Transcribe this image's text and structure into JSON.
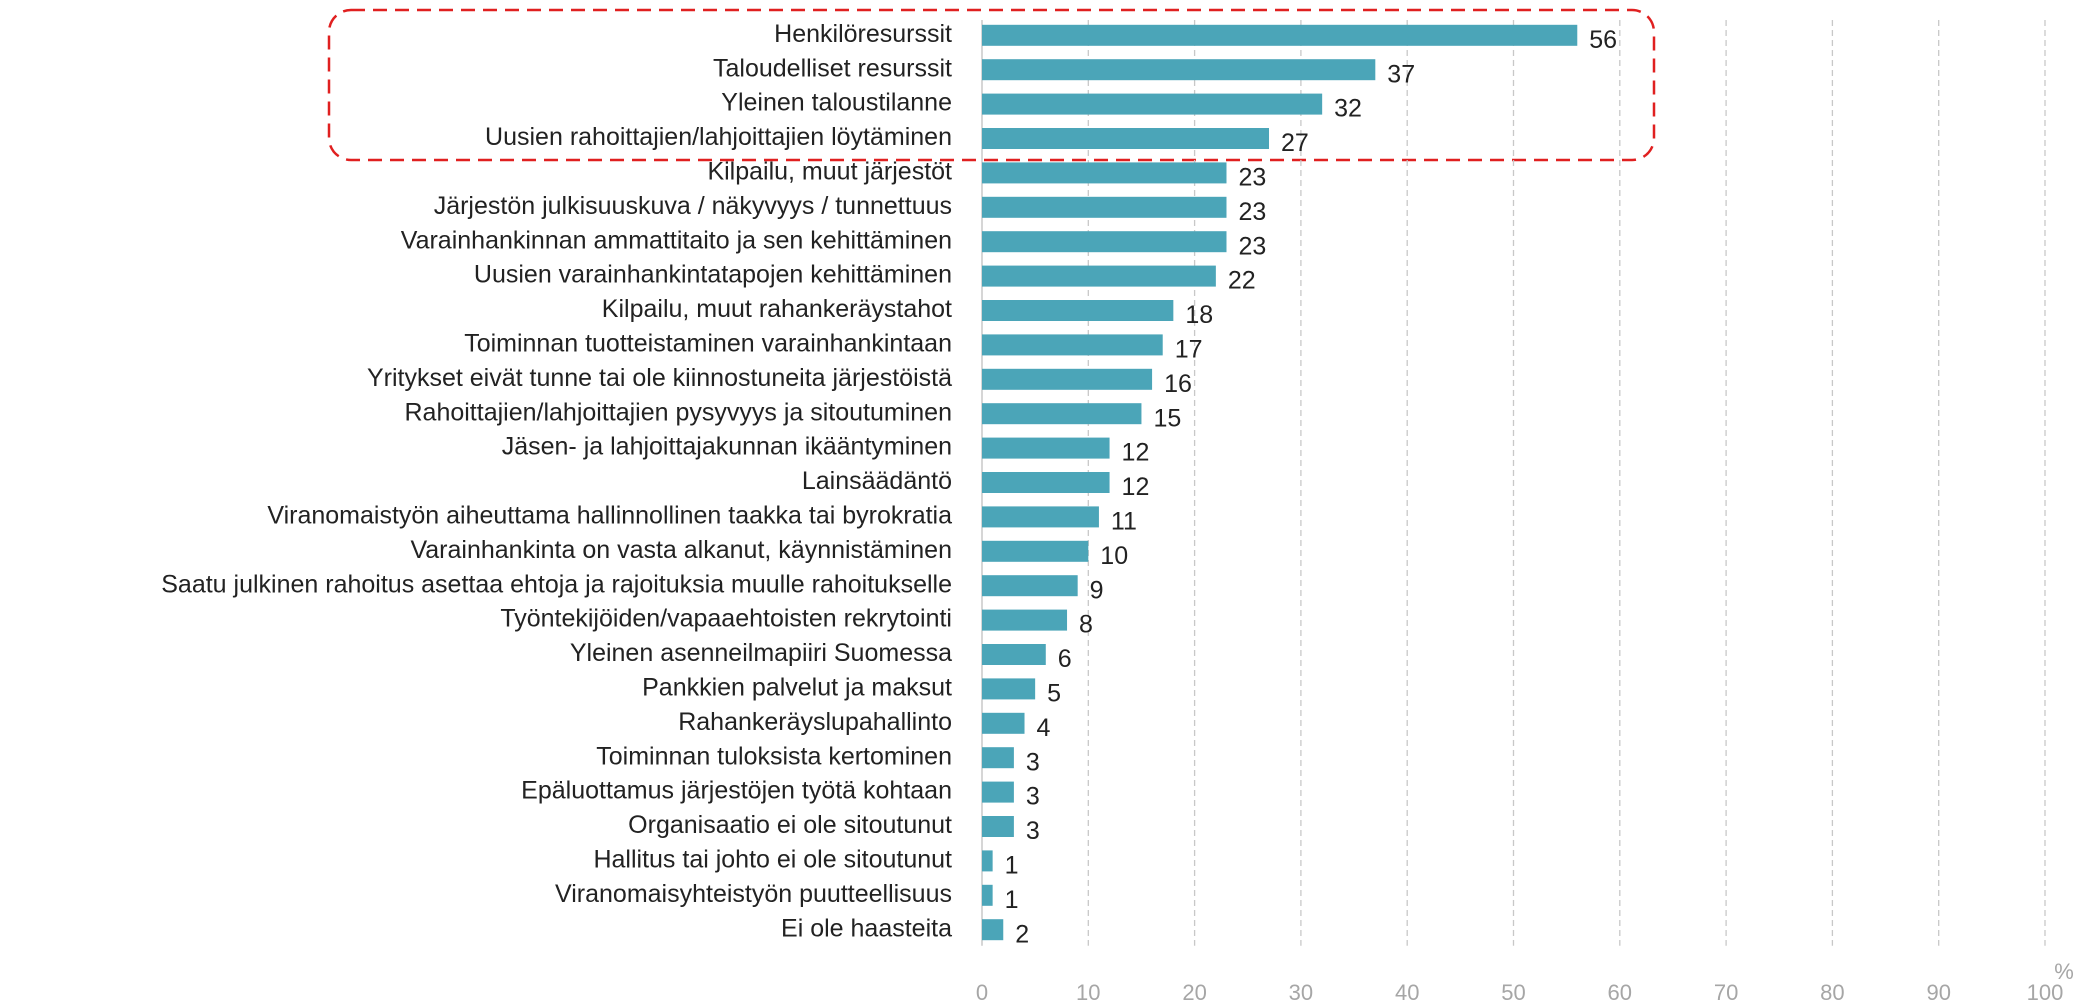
{
  "chart_data": {
    "type": "bar",
    "orientation": "horizontal",
    "categories": [
      "Henkilöresurssit",
      "Taloudelliset resurssit",
      "Yleinen taloustilanne",
      "Uusien rahoittajien/lahjoittajien löytäminen",
      "Kilpailu, muut järjestöt",
      "Järjestön julkisuuskuva / näkyvyys / tunnettuus",
      "Varainhankinnan ammattitaito ja sen kehittäminen",
      "Uusien varainhankintatapojen kehittäminen",
      "Kilpailu, muut rahankeräystahot",
      "Toiminnan tuotteistaminen varainhankintaan",
      "Yritykset eivät tunne tai ole kiinnostuneita järjestöistä",
      "Rahoittajien/lahjoittajien pysyvyys ja sitoutuminen",
      "Jäsen- ja lahjoittajakunnan ikääntyminen",
      "Lainsäädäntö",
      "Viranomaistyön aiheuttama hallinnollinen taakka tai byrokratia",
      "Varainhankinta on vasta alkanut, käynnistäminen",
      "Saatu julkinen rahoitus asettaa ehtoja ja rajoituksia muulle rahoitukselle",
      "Työntekijöiden/vapaaehtoisten rekrytointi",
      "Yleinen asenneilmapiiri Suomessa",
      "Pankkien palvelut ja maksut",
      "Rahankeräyslupahallinto",
      "Toiminnan tuloksista kertominen",
      "Epäluottamus järjestöjen työtä kohtaan",
      "Organisaatio ei ole sitoutunut",
      "Hallitus tai johto ei ole sitoutunut",
      "Viranomaisyhteistyön puutteellisuus",
      "Ei ole haasteita"
    ],
    "values": [
      56,
      37,
      32,
      27,
      23,
      23,
      23,
      22,
      18,
      17,
      16,
      15,
      12,
      12,
      11,
      10,
      9,
      8,
      6,
      5,
      4,
      3,
      3,
      3,
      1,
      1,
      2
    ],
    "color": "#4ba5b8",
    "xlim": [
      0,
      100
    ],
    "xticks": [
      0,
      10,
      20,
      30,
      40,
      50,
      60,
      70,
      80,
      90,
      100
    ],
    "x_unit": "%",
    "grid": true
  }
}
